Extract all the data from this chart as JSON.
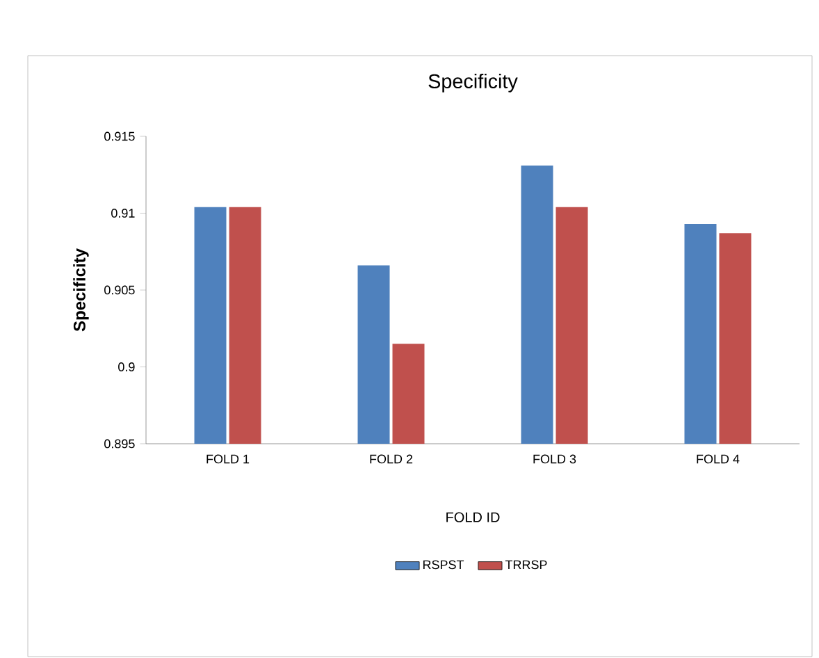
{
  "chart_data": {
    "type": "bar",
    "title": "Specificity",
    "xlabel": "FOLD ID",
    "ylabel": "Specificity",
    "categories": [
      "FOLD 1",
      "FOLD 2",
      "FOLD 3",
      "FOLD 4"
    ],
    "series": [
      {
        "name": "RSPST",
        "color": "#4f81bd",
        "values": [
          0.9104,
          0.9066,
          0.9131,
          0.9093
        ]
      },
      {
        "name": "TRRSP",
        "color": "#c0504d",
        "values": [
          0.9104,
          0.9015,
          0.9104,
          0.9087
        ]
      }
    ],
    "ylim": [
      0.895,
      0.915
    ],
    "yticks": [
      0.895,
      0.9,
      0.905,
      0.91,
      0.915
    ],
    "grid": false,
    "legend": "bottom"
  }
}
